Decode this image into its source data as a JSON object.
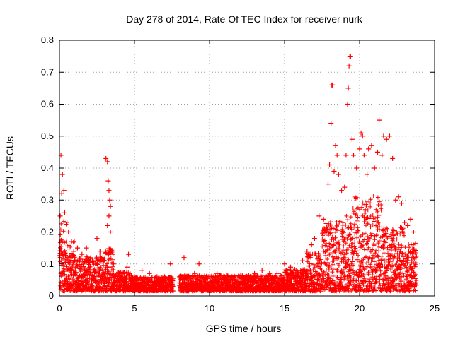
{
  "chart_data": {
    "type": "scatter",
    "title": "Day 278 of 2014, Rate Of TEC Index for receiver nurk",
    "xlabel": "GPS time / hours",
    "ylabel": "ROTI / TECUs",
    "xlim": [
      0,
      25
    ],
    "ylim": [
      0,
      0.8
    ],
    "xticks": [
      "0",
      "5",
      "10",
      "15",
      "20",
      "25"
    ],
    "yticks": [
      "0",
      "0.1",
      "0.2",
      "0.3",
      "0.4",
      "0.5",
      "0.6",
      "0.7",
      "0.8"
    ],
    "grid": true,
    "marker": "+",
    "color": "#ff0000",
    "series": [
      {
        "name": "ROTI",
        "points": [
          [
            0.05,
            0.25
          ],
          [
            0.1,
            0.44
          ],
          [
            0.15,
            0.32
          ],
          [
            0.2,
            0.38
          ],
          [
            0.3,
            0.33
          ],
          [
            0.35,
            0.26
          ],
          [
            0.5,
            0.23
          ],
          [
            0.6,
            0.2
          ],
          [
            0.8,
            0.17
          ],
          [
            1.0,
            0.12
          ],
          [
            1.2,
            0.15
          ],
          [
            1.5,
            0.13
          ],
          [
            1.8,
            0.15
          ],
          [
            2.2,
            0.11
          ],
          [
            2.5,
            0.18
          ],
          [
            2.7,
            0.14
          ],
          [
            2.9,
            0.12
          ],
          [
            3.1,
            0.43
          ],
          [
            3.2,
            0.42
          ],
          [
            3.25,
            0.36
          ],
          [
            3.3,
            0.33
          ],
          [
            3.35,
            0.3
          ],
          [
            3.4,
            0.28
          ],
          [
            3.3,
            0.25
          ],
          [
            3.2,
            0.22
          ],
          [
            3.4,
            0.2
          ],
          [
            3.6,
            0.1
          ],
          [
            4.0,
            0.07
          ],
          [
            4.5,
            0.09
          ],
          [
            4.6,
            0.13
          ],
          [
            5.0,
            0.06
          ],
          [
            5.5,
            0.08
          ],
          [
            6.0,
            0.07
          ],
          [
            6.5,
            0.06
          ],
          [
            7.0,
            0.06
          ],
          [
            7.4,
            0.1
          ],
          [
            8.0,
            0.06
          ],
          [
            8.3,
            0.12
          ],
          [
            9.0,
            0.07
          ],
          [
            9.3,
            0.1
          ],
          [
            10.0,
            0.06
          ],
          [
            10.5,
            0.07
          ],
          [
            11.0,
            0.06
          ],
          [
            11.5,
            0.06
          ],
          [
            12.0,
            0.06
          ],
          [
            12.5,
            0.05
          ],
          [
            13.0,
            0.07
          ],
          [
            13.5,
            0.08
          ],
          [
            14.0,
            0.07
          ],
          [
            14.5,
            0.07
          ],
          [
            15.0,
            0.1
          ],
          [
            15.4,
            0.09
          ],
          [
            15.8,
            0.08
          ],
          [
            16.2,
            0.11
          ],
          [
            16.5,
            0.14
          ],
          [
            16.8,
            0.16
          ],
          [
            17.0,
            0.18
          ],
          [
            17.3,
            0.25
          ],
          [
            17.6,
            0.24
          ],
          [
            17.9,
            0.35
          ],
          [
            18.0,
            0.41
          ],
          [
            18.1,
            0.54
          ],
          [
            18.15,
            0.66
          ],
          [
            18.2,
            0.66
          ],
          [
            18.3,
            0.39
          ],
          [
            18.4,
            0.47
          ],
          [
            18.5,
            0.44
          ],
          [
            18.6,
            0.38
          ],
          [
            18.8,
            0.33
          ],
          [
            19.0,
            0.34
          ],
          [
            19.1,
            0.44
          ],
          [
            19.2,
            0.6
          ],
          [
            19.25,
            0.65
          ],
          [
            19.3,
            0.72
          ],
          [
            19.35,
            0.75
          ],
          [
            19.4,
            0.75
          ],
          [
            19.5,
            0.49
          ],
          [
            19.6,
            0.44
          ],
          [
            19.8,
            0.4
          ],
          [
            20.0,
            0.46
          ],
          [
            20.1,
            0.51
          ],
          [
            20.2,
            0.5
          ],
          [
            20.3,
            0.44
          ],
          [
            20.5,
            0.38
          ],
          [
            20.6,
            0.46
          ],
          [
            20.8,
            0.47
          ],
          [
            21.0,
            0.4
          ],
          [
            21.2,
            0.45
          ],
          [
            21.3,
            0.55
          ],
          [
            21.5,
            0.44
          ],
          [
            21.6,
            0.5
          ],
          [
            21.8,
            0.49
          ],
          [
            22.0,
            0.5
          ],
          [
            22.2,
            0.43
          ],
          [
            22.4,
            0.3
          ],
          [
            22.6,
            0.31
          ],
          [
            22.8,
            0.29
          ],
          [
            23.0,
            0.23
          ],
          [
            23.2,
            0.22
          ],
          [
            23.4,
            0.24
          ],
          [
            23.6,
            0.2
          ]
        ]
      }
    ]
  }
}
